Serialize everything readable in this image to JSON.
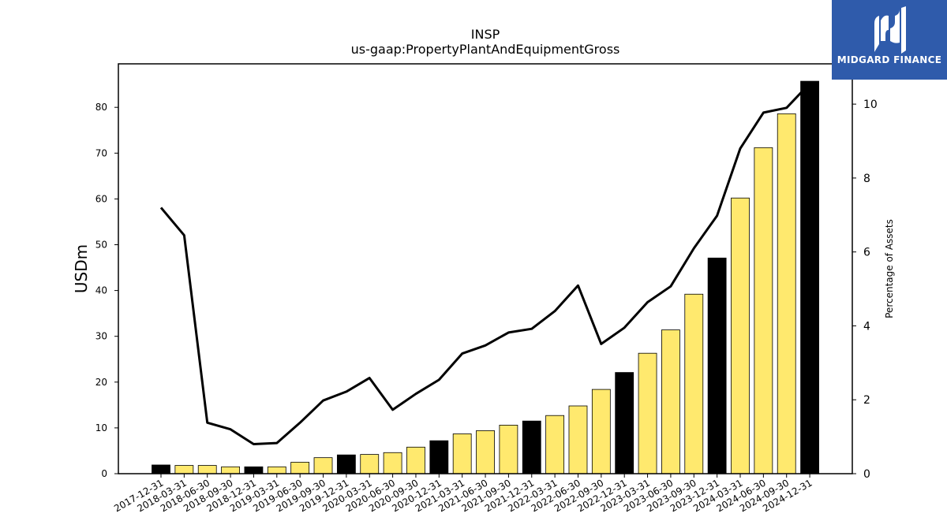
{
  "brand": {
    "name": "MIDGARD FINANCE"
  },
  "colors": {
    "highlight": "#000000",
    "normal": "#ffe96e",
    "line": "#000000"
  },
  "chart_data": {
    "type": "bar",
    "title": "INSP",
    "subtitle": "us-gaap:PropertyPlantAndEquipmentGross",
    "ylabel": "USDm",
    "y2label": "Percentage of Assets",
    "ylim": [
      0,
      89.5
    ],
    "y2lim": [
      0,
      11.09
    ],
    "yticks": [
      0,
      10,
      20,
      30,
      40,
      50,
      60,
      70,
      80
    ],
    "y2ticks": [
      0,
      2,
      4,
      6,
      8,
      10
    ],
    "categories": [
      "2017-12-31",
      "2018-03-31",
      "2018-06-30",
      "2018-09-30",
      "2018-12-31",
      "2019-03-31",
      "2019-06-30",
      "2019-09-30",
      "2019-12-31",
      "2020-03-31",
      "2020-06-30",
      "2020-09-30",
      "2020-12-31",
      "2021-03-31",
      "2021-06-30",
      "2021-09-30",
      "2021-12-31",
      "2022-03-31",
      "2022-06-30",
      "2022-09-30",
      "2022-12-31",
      "2023-03-31",
      "2023-06-30",
      "2023-09-30",
      "2023-12-31",
      "2024-03-31",
      "2024-06-30",
      "2024-09-30",
      "2024-12-31"
    ],
    "series": [
      {
        "type": "bar",
        "axis": "left",
        "values": [
          1.9,
          1.8,
          1.8,
          1.5,
          1.5,
          1.5,
          2.5,
          3.5,
          4.1,
          4.2,
          4.6,
          5.8,
          7.2,
          8.7,
          9.4,
          10.6,
          11.5,
          12.7,
          14.8,
          18.4,
          22.1,
          26.3,
          31.4,
          39.2,
          47.1,
          60.2,
          71.2,
          78.6,
          85.7
        ],
        "highlight": [
          true,
          false,
          false,
          false,
          true,
          false,
          false,
          false,
          true,
          false,
          false,
          false,
          true,
          false,
          false,
          false,
          true,
          false,
          false,
          false,
          true,
          false,
          false,
          false,
          true,
          false,
          false,
          false,
          true
        ]
      },
      {
        "type": "line",
        "axis": "right",
        "values": [
          7.2,
          6.45,
          1.38,
          1.2,
          0.8,
          0.83,
          1.38,
          1.98,
          2.22,
          2.59,
          1.73,
          2.16,
          2.54,
          3.25,
          3.47,
          3.82,
          3.92,
          4.4,
          5.09,
          3.51,
          3.95,
          4.64,
          5.07,
          6.1,
          6.98,
          8.8,
          9.77,
          9.9,
          10.56
        ]
      }
    ],
    "grid": false,
    "legend": "none"
  }
}
